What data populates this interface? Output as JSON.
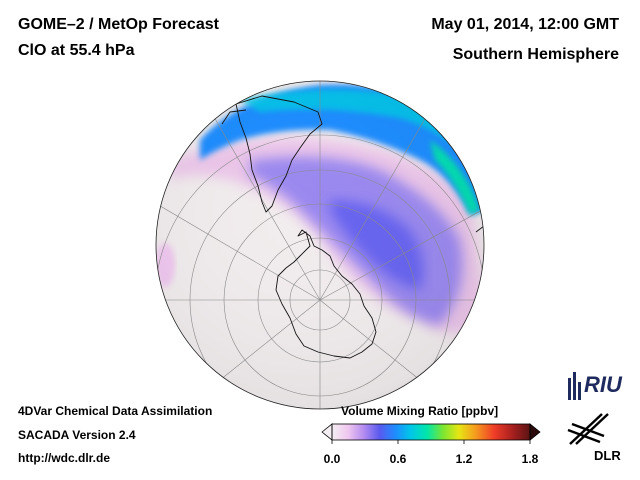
{
  "header": {
    "title": "GOME–2 / MetOp Forecast",
    "subtitle": "ClO at 55.4 hPa",
    "date": "May 01, 2014, 12:00 GMT",
    "region": "Southern Hemisphere"
  },
  "footer": {
    "line1": "4DVar Chemical Data Assimilation",
    "line2": "SACADA Version 2.4",
    "line3": "http://wdc.dlr.de"
  },
  "colorbar": {
    "title": "Volume Mixing Ratio [ppbv]",
    "ticks": [
      "0.0",
      "0.6",
      "1.2",
      "1.8"
    ],
    "min": 0.0,
    "max": 1.8,
    "colors": [
      "#f3eef1",
      "#f0c8f0",
      "#b48cf0",
      "#5a5aef",
      "#1e8cff",
      "#00c8e6",
      "#00e6aa",
      "#7ae632",
      "#e6e614",
      "#f5a01e",
      "#f03c28",
      "#a01e1e",
      "#5a1414"
    ]
  },
  "map": {
    "projection": "orthographic, south pole",
    "features": [
      "antarctica-outline",
      "south-america-outline",
      "australia-outline",
      "latitude-circles",
      "longitude-lines"
    ]
  },
  "logos": {
    "riu": "RIU",
    "dlr": "DLR"
  }
}
